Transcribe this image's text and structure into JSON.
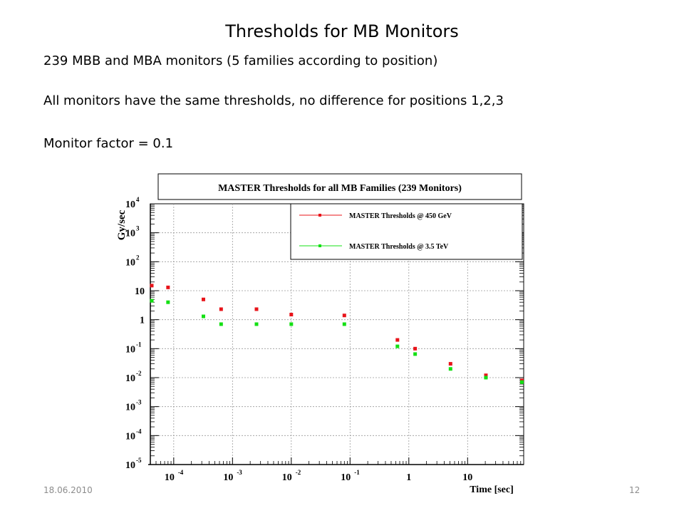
{
  "slide": {
    "title": "Thresholds for MB Monitors",
    "lines": [
      "239 MBB and  MBA monitors (5 families according to position)",
      "All monitors have the same thresholds, no difference for positions 1,2,3",
      "Monitor factor = 0.1"
    ],
    "footer_date": "18.06.2010",
    "page_number": "12"
  },
  "chart_data": {
    "type": "scatter",
    "title": "MASTER Thresholds for all MB Families (239 Monitors)",
    "xlabel": "Time [sec]",
    "ylabel": "Gy/sec",
    "x_scale": "log",
    "y_scale": "log",
    "xlim": [
      4e-05,
      90
    ],
    "ylim": [
      1e-05,
      10000
    ],
    "x_ticks": [
      {
        "value": 0.0001,
        "base": "10",
        "exp": "-4"
      },
      {
        "value": 0.001,
        "base": "10",
        "exp": "-3"
      },
      {
        "value": 0.01,
        "base": "10",
        "exp": "-2"
      },
      {
        "value": 0.1,
        "base": "10",
        "exp": "-1"
      },
      {
        "value": 1,
        "base": "1",
        "exp": ""
      },
      {
        "value": 10,
        "base": "10",
        "exp": ""
      }
    ],
    "y_ticks": [
      {
        "value": 1e-05,
        "base": "10",
        "exp": "-5"
      },
      {
        "value": 0.0001,
        "base": "10",
        "exp": "-4"
      },
      {
        "value": 0.001,
        "base": "10",
        "exp": "-3"
      },
      {
        "value": 0.01,
        "base": "10",
        "exp": "-2"
      },
      {
        "value": 0.1,
        "base": "10",
        "exp": "-1"
      },
      {
        "value": 1,
        "base": "1",
        "exp": ""
      },
      {
        "value": 10,
        "base": "10",
        "exp": ""
      },
      {
        "value": 100,
        "base": "10",
        "exp": "2"
      },
      {
        "value": 1000,
        "base": "10",
        "exp": "3"
      },
      {
        "value": 10000,
        "base": "10",
        "exp": "4"
      }
    ],
    "grid": true,
    "legend_position": "top-right",
    "series": [
      {
        "name": "MASTER Thresholds @ 450 GeV",
        "color": "#e8141a",
        "x": [
          4e-05,
          8e-05,
          0.00032,
          0.00064,
          0.00256,
          0.01,
          0.08,
          0.64,
          1.28,
          5.12,
          20.48,
          83.89
        ],
        "y": [
          15,
          13,
          5,
          2.3,
          2.3,
          1.5,
          1.4,
          0.2,
          0.1,
          0.03,
          0.012,
          0.008
        ]
      },
      {
        "name": "MASTER Thresholds @ 3.5 TeV",
        "color": "#14e014",
        "x": [
          4e-05,
          8e-05,
          0.00032,
          0.00064,
          0.00256,
          0.01,
          0.08,
          0.64,
          1.28,
          5.12,
          20.48,
          83.89
        ],
        "y": [
          4.5,
          4,
          1.3,
          0.7,
          0.7,
          0.7,
          0.7,
          0.12,
          0.065,
          0.02,
          0.01,
          0.007
        ]
      }
    ]
  }
}
